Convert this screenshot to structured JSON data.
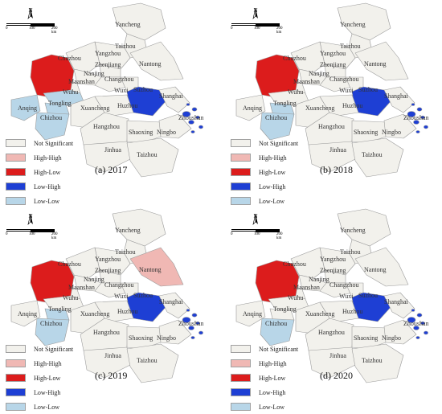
{
  "scale_bar": {
    "ticks": [
      "0",
      "100",
      "200 km"
    ]
  },
  "north_label": "N",
  "legend": [
    {
      "label": "Not Significant",
      "color": "#f2f1ec"
    },
    {
      "label": "High-High",
      "color": "#f0b8b4"
    },
    {
      "label": "High-Low",
      "color": "#dc1c1c"
    },
    {
      "label": "Low-High",
      "color": "#1e3fd4"
    },
    {
      "label": "Low-Low",
      "color": "#b8d6e8"
    }
  ],
  "panels": [
    {
      "caption": "(a) 2017",
      "classes": {
        "hefei": "High-Low",
        "anqing": "Low-Low",
        "chizhou": "Low-Low",
        "tongling": "Low-Low",
        "wuhu": "Low-Low",
        "nantong": "Not Significant",
        "suzhou": "Low-High",
        "zhoushan": "Low-High"
      }
    },
    {
      "caption": "(b) 2018",
      "classes": {
        "hefei": "High-Low",
        "anqing": "Not Significant",
        "chizhou": "Low-Low",
        "tongling": "Low-Low",
        "wuhu": "Not Significant",
        "nantong": "Not Significant",
        "suzhou": "Low-High",
        "zhoushan": "Low-High"
      }
    },
    {
      "caption": "(c) 2019",
      "classes": {
        "hefei": "High-Low",
        "anqing": "Not Significant",
        "chizhou": "Low-Low",
        "tongling": "Low-Low",
        "wuhu": "Not Significant",
        "nantong": "High-High",
        "suzhou": "Low-High",
        "zhoushan": "Low-High"
      }
    },
    {
      "caption": "(d) 2020",
      "classes": {
        "hefei": "High-Low",
        "anqing": "Not Significant",
        "chizhou": "Low-Low",
        "tongling": "Not Significant",
        "wuhu": "Not Significant",
        "nantong": "Not Significant",
        "suzhou": "Low-High",
        "zhoushan": "Low-High"
      }
    }
  ],
  "cities": {
    "yancheng": "Yancheng",
    "taizhou_n": "Taizhou",
    "yangzhou": "Yangzhou",
    "chuzhou": "Chuzhou",
    "nantong": "Nantong",
    "zhenjiang": "Zhenjiang",
    "nanjing": "Nanjing",
    "maanshan": "Maanshan",
    "changzhou": "Changzhou",
    "wuxi": "Wuxi",
    "suzhou": "Suzhou",
    "wuhu": "Wuhu",
    "shanghai": "Shanghai",
    "anqing": "Anqing",
    "tongling": "Tongling",
    "xuancheng": "Xuancheng",
    "huzhou": "Huzhou",
    "zhoushan": "Zhoushan",
    "chizhou": "Chizhou",
    "hangzhou": "Hangzhou",
    "ningbo": "Ningbo",
    "shaoxing": "Shaoxing",
    "jinhua": "Jinhua",
    "taizhou_s": "Taizhou"
  }
}
